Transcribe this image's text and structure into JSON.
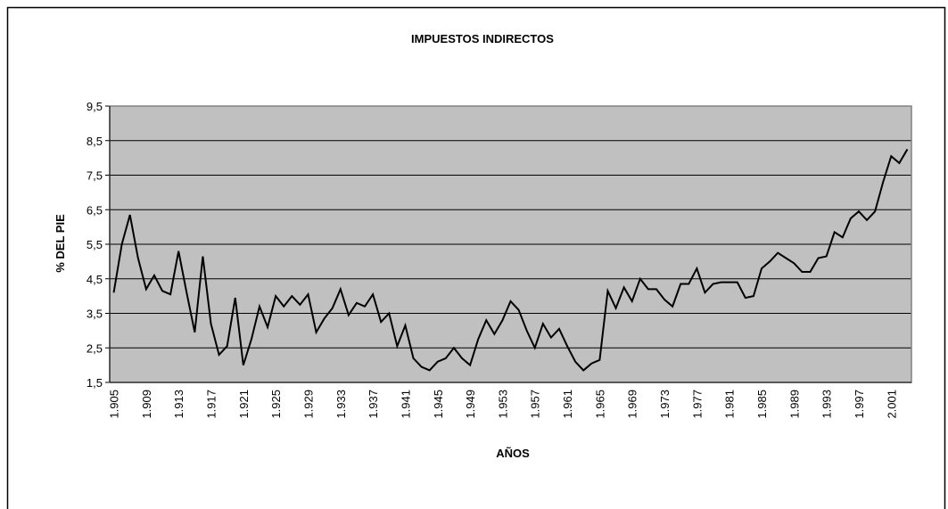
{
  "chart_data": {
    "type": "line",
    "title": "IMPUESTOS INDIRECTOS",
    "x_label": "AÑOS",
    "y_label": "% DEL PIE",
    "categories": [
      "1.905",
      null,
      null,
      null,
      "1.909",
      null,
      null,
      null,
      "1.913",
      null,
      null,
      null,
      "1.917",
      null,
      null,
      null,
      "1.921",
      null,
      null,
      null,
      "1.925",
      null,
      null,
      null,
      "1.929",
      null,
      null,
      null,
      "1.933",
      null,
      null,
      null,
      "1.937",
      null,
      null,
      null,
      "1.941",
      null,
      null,
      null,
      "1.945",
      null,
      null,
      null,
      "1.949",
      null,
      null,
      null,
      "1.953",
      null,
      null,
      null,
      "1.957",
      null,
      null,
      null,
      "1.961",
      null,
      null,
      null,
      "1.965",
      null,
      null,
      null,
      "1.969",
      null,
      null,
      null,
      "1.973",
      null,
      null,
      null,
      "1.977",
      null,
      null,
      null,
      "1.981",
      null,
      null,
      null,
      "1.985",
      null,
      null,
      null,
      "1.989",
      null,
      null,
      null,
      "1.993",
      null,
      null,
      null,
      "1.997",
      null,
      null,
      null,
      "2.001",
      null,
      null
    ],
    "series": [
      {
        "name": null,
        "color": "#000000",
        "values": [
          4.1,
          5.5,
          6.35,
          5.1,
          4.2,
          4.6,
          4.15,
          4.05,
          5.3,
          4.1,
          2.95,
          5.15,
          3.2,
          2.3,
          2.55,
          3.95,
          2.0,
          2.75,
          3.7,
          3.1,
          4.0,
          3.7,
          4.0,
          3.75,
          4.05,
          2.95,
          3.35,
          3.65,
          4.2,
          3.45,
          3.8,
          3.7,
          4.05,
          3.25,
          3.5,
          2.55,
          3.15,
          2.2,
          1.95,
          1.85,
          2.1,
          2.2,
          2.5,
          2.2,
          2.0,
          2.75,
          3.3,
          2.9,
          3.3,
          3.85,
          3.6,
          3.0,
          2.5,
          3.2,
          2.8,
          3.05,
          2.55,
          2.1,
          1.85,
          2.05,
          2.15,
          4.15,
          3.65,
          4.25,
          3.85,
          4.5,
          4.2,
          4.2,
          3.9,
          3.7,
          4.35,
          4.35,
          4.8,
          4.1,
          4.35,
          4.4,
          4.4,
          4.4,
          3.95,
          4.0,
          4.8,
          5.0,
          5.25,
          5.1,
          4.95,
          4.7,
          4.7,
          5.1,
          5.15,
          5.85,
          5.7,
          6.25,
          6.45,
          6.2,
          6.45,
          7.3,
          8.05,
          7.85,
          8.25
        ]
      }
    ],
    "ylim": [
      1.5,
      9.5
    ],
    "yticks": [
      {
        "value": 1.5,
        "label": "1,5"
      },
      {
        "value": 2.5,
        "label": "2,5"
      },
      {
        "value": 3.5,
        "label": "3,5"
      },
      {
        "value": 4.5,
        "label": "4,5"
      },
      {
        "value": 5.5,
        "label": "5,5"
      },
      {
        "value": 6.5,
        "label": "6,5"
      },
      {
        "value": 7.5,
        "label": "7,5"
      },
      {
        "value": 8.5,
        "label": "8,5"
      },
      {
        "value": 9.5,
        "label": "9,5"
      }
    ],
    "grid": true,
    "plot_background": "#c0c0c0"
  }
}
